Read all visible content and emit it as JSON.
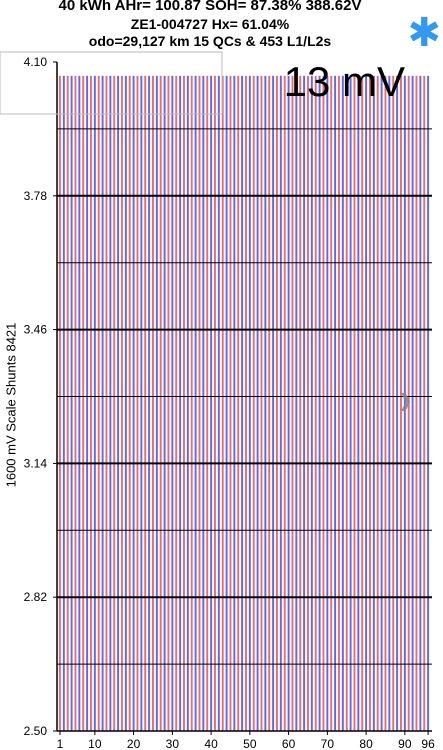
{
  "header": {
    "line1": "40 kWh  AHr= 100.87  SOH= 87.38%   388.62V",
    "line2": "ZE1-004727   Hx= 61.04%",
    "line3": "odo=29,127 km 15 QCs & 453 L1/L2s"
  },
  "icons": {
    "settings": "asterisk-icon",
    "next": "chevron-right-icon"
  },
  "colors": {
    "series_a": "#f26b6b",
    "series_b": "#5a6bf2",
    "gridline": "#000000"
  },
  "chart_data": {
    "type": "bar",
    "readout": "13 mV",
    "ylabel": "1600 mV Scale   Shunts 8421",
    "ylim": [
      2.5,
      4.1
    ],
    "ytick_labels": [
      "4.10",
      "3.78",
      "3.46",
      "3.14",
      "2.82",
      "2.50"
    ],
    "xtick_labels": [
      "1",
      "10",
      "20",
      "30",
      "40",
      "50",
      "60",
      "70",
      "80",
      "90",
      "96"
    ],
    "cell_count": 96,
    "cell_voltage_approx": 4.067,
    "series_alternating_colors": [
      "#f26b6b",
      "#5a6bf2"
    ]
  }
}
